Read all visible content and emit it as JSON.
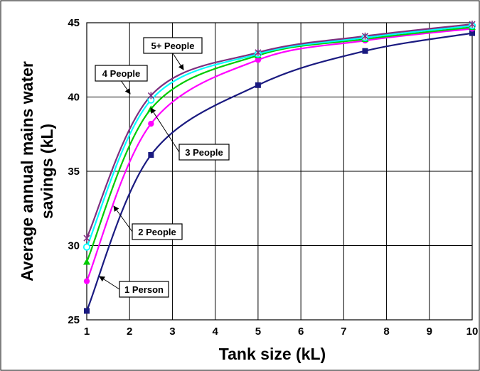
{
  "chart_data": {
    "type": "line",
    "title": "",
    "xlabel": "Tank size (kL)",
    "ylabel_line1": "Average annual mains water",
    "ylabel_line2": "savings (kL)",
    "xlim": [
      1,
      10
    ],
    "ylim": [
      25,
      45
    ],
    "xticks": [
      1,
      2,
      3,
      4,
      5,
      6,
      7,
      8,
      9,
      10
    ],
    "yticks": [
      25,
      30,
      35,
      40,
      45
    ],
    "grid": "both",
    "x": [
      1,
      2.5,
      5,
      7.5,
      10
    ],
    "series": [
      {
        "name": "1 Person",
        "color": "#1a1a80",
        "marker": "square",
        "values": [
          25.6,
          36.1,
          40.8,
          43.1,
          44.3
        ]
      },
      {
        "name": "2 People",
        "color": "#ff00ff",
        "marker": "circle",
        "values": [
          27.6,
          38.2,
          42.5,
          43.8,
          44.6
        ]
      },
      {
        "name": "3 People",
        "color": "#00cc00",
        "marker": "triangle",
        "values": [
          28.9,
          39.2,
          42.8,
          43.9,
          44.7
        ]
      },
      {
        "name": "4 People",
        "color": "#00ffff",
        "marker": "circle-open",
        "values": [
          29.9,
          39.8,
          42.9,
          44.0,
          44.8
        ]
      },
      {
        "name": "5+ People",
        "color": "#7f2f7f",
        "marker": "star",
        "values": [
          30.5,
          40.1,
          43.0,
          44.1,
          44.9
        ]
      }
    ],
    "annotations": [
      {
        "text": "5+ People",
        "series": "5+ People"
      },
      {
        "text": "4 People",
        "series": "4 People"
      },
      {
        "text": "3 People",
        "series": "3 People"
      },
      {
        "text": "2 People",
        "series": "2 People"
      },
      {
        "text": "1 Person",
        "series": "1 Person"
      }
    ]
  }
}
